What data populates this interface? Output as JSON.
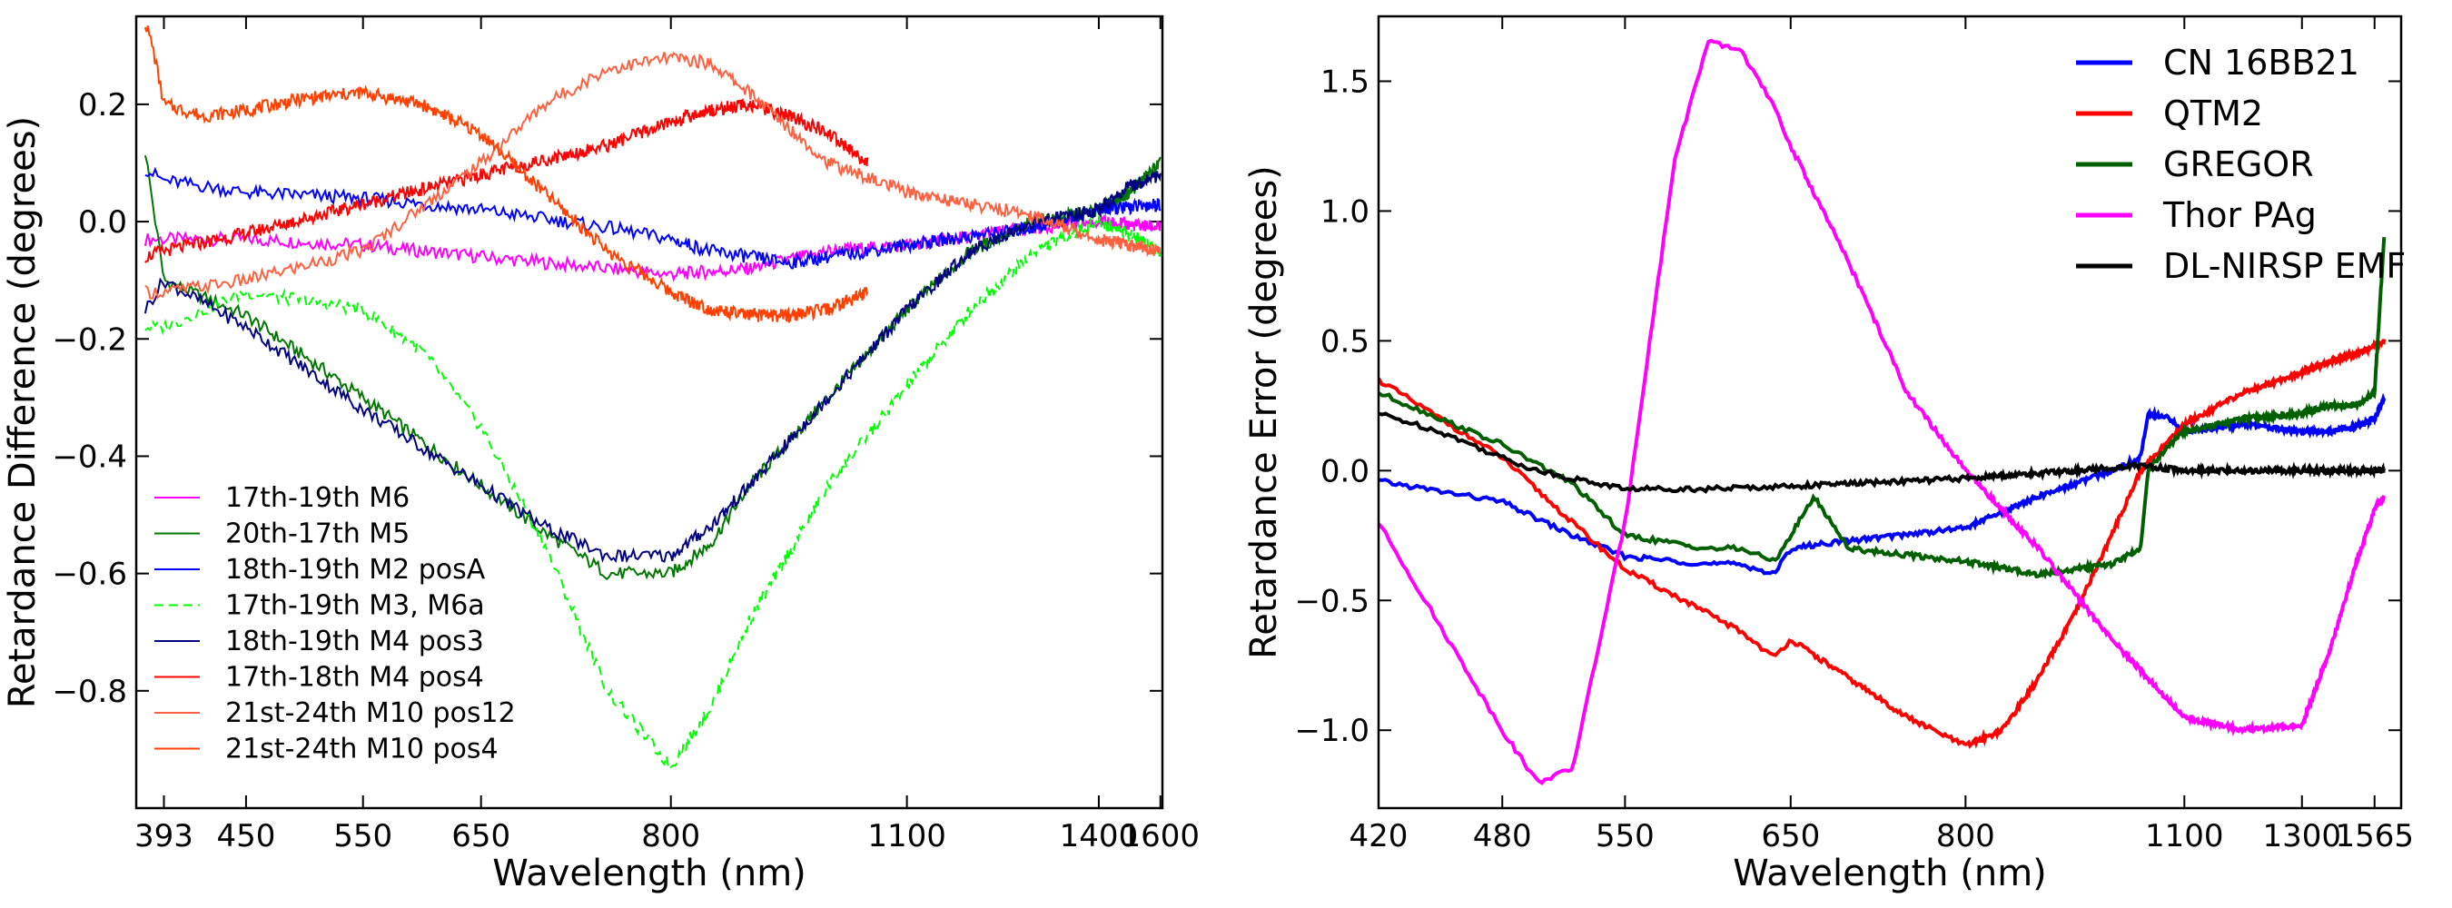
{
  "chart_data": [
    {
      "type": "line",
      "xlabel": "Wavelength (nm)",
      "ylabel": "Retardance Difference  (degrees)",
      "xticks": [
        "393",
        "450",
        "550",
        "650",
        "800",
        "1100",
        "1400",
        "1600"
      ],
      "xtick_values": [
        393,
        450,
        550,
        650,
        800,
        1100,
        1400,
        1600
      ],
      "xlim": [
        380,
        1600
      ],
      "ylim": [
        -1.0,
        0.35
      ],
      "yticks": [
        0.2,
        0.0,
        -0.2,
        -0.4,
        -0.6,
        -0.8
      ],
      "ytick_labels": [
        "0.2",
        "0.0",
        "−0.2",
        "−0.4",
        "−0.6",
        "−0.8"
      ],
      "legend_position": "lower-left",
      "series": [
        {
          "name": "17th-19th  M6",
          "color": "#ff00ff",
          "dash": "solid",
          "x": [
            380,
            450,
            550,
            650,
            750,
            800,
            900,
            1000,
            1100,
            1300,
            1400,
            1600
          ],
          "y": [
            -0.03,
            -0.03,
            -0.04,
            -0.06,
            -0.08,
            -0.09,
            -0.08,
            -0.05,
            -0.04,
            -0.01,
            0.0,
            -0.01
          ]
        },
        {
          "name": "20th-17th  M5",
          "color": "#007700",
          "dash": "solid",
          "x": [
            380,
            393,
            450,
            550,
            650,
            700,
            750,
            800,
            850,
            900,
            1000,
            1100,
            1200,
            1300,
            1400,
            1500,
            1600
          ],
          "y": [
            0.12,
            -0.1,
            -0.16,
            -0.3,
            -0.45,
            -0.53,
            -0.6,
            -0.6,
            -0.55,
            -0.45,
            -0.3,
            -0.15,
            -0.05,
            0.0,
            0.02,
            0.05,
            0.1
          ]
        },
        {
          "name": "18th-19th  M2 posA",
          "color": "#0000ff",
          "dash": "solid",
          "x": [
            380,
            393,
            450,
            550,
            650,
            750,
            850,
            950,
            1000,
            1100,
            1300,
            1400,
            1600
          ],
          "y": [
            0.09,
            0.07,
            0.05,
            0.04,
            0.02,
            -0.01,
            -0.05,
            -0.07,
            -0.06,
            -0.04,
            -0.01,
            0.02,
            0.03
          ]
        },
        {
          "name": "17th-19th  M3, M6a",
          "color": "#00ff00",
          "dash": "dashed",
          "x": [
            380,
            393,
            450,
            550,
            600,
            650,
            700,
            750,
            800,
            850,
            900,
            1000,
            1100,
            1200,
            1300,
            1400,
            1500,
            1600
          ],
          "y": [
            -0.18,
            -0.18,
            -0.12,
            -0.15,
            -0.22,
            -0.35,
            -0.55,
            -0.8,
            -0.93,
            -0.83,
            -0.68,
            -0.45,
            -0.28,
            -0.15,
            -0.05,
            0.0,
            -0.02,
            -0.05
          ]
        },
        {
          "name": "18th-19th  M4 pos3",
          "color": "#000080",
          "dash": "solid",
          "x": [
            380,
            393,
            450,
            550,
            650,
            700,
            750,
            800,
            850,
            900,
            1000,
            1100,
            1200,
            1300,
            1400,
            1500,
            1600
          ],
          "y": [
            -0.15,
            -0.1,
            -0.18,
            -0.32,
            -0.45,
            -0.52,
            -0.57,
            -0.57,
            -0.52,
            -0.45,
            -0.3,
            -0.15,
            -0.05,
            0.0,
            0.02,
            0.06,
            0.08
          ]
        },
        {
          "name": "17th-18th  M4 pos4",
          "color": "#ff0000",
          "dash": "solid",
          "x": [
            380,
            393,
            450,
            550,
            650,
            750,
            800,
            850,
            900,
            950,
            1000,
            1050
          ],
          "y": [
            -0.06,
            -0.05,
            -0.02,
            0.03,
            0.08,
            0.13,
            0.17,
            0.19,
            0.2,
            0.18,
            0.15,
            0.1
          ]
        },
        {
          "name": "21st-24th  M10 pos12",
          "color": "#ff6040",
          "dash": "solid",
          "x": [
            380,
            393,
            450,
            550,
            650,
            700,
            750,
            800,
            850,
            900,
            1000,
            1100,
            1200,
            1300,
            1400,
            1600
          ],
          "y": [
            -0.12,
            -0.12,
            -0.1,
            -0.05,
            0.1,
            0.2,
            0.26,
            0.28,
            0.27,
            0.22,
            0.1,
            0.05,
            0.03,
            0.01,
            -0.03,
            -0.05
          ]
        },
        {
          "name": "21st-24th  M10 pos4",
          "color": "#ff4000",
          "dash": "solid",
          "x": [
            380,
            385,
            393,
            420,
            450,
            500,
            550,
            600,
            650,
            700,
            750,
            800,
            850,
            900,
            950,
            1000,
            1050
          ],
          "y": [
            0.34,
            0.3,
            0.2,
            0.18,
            0.19,
            0.21,
            0.22,
            0.2,
            0.15,
            0.05,
            -0.05,
            -0.12,
            -0.15,
            -0.16,
            -0.16,
            -0.15,
            -0.12
          ]
        }
      ]
    },
    {
      "type": "line",
      "xlabel": "Wavelength (nm)",
      "ylabel": "Retardance Error  (degrees)",
      "xticks": [
        "420",
        "480",
        "550",
        "650",
        "800",
        "1100",
        "1300",
        "1565"
      ],
      "xtick_values": [
        420,
        480,
        550,
        650,
        800,
        1100,
        1300,
        1565
      ],
      "xlim": [
        420,
        1600
      ],
      "ylim": [
        -1.3,
        1.75
      ],
      "yticks": [
        1.5,
        1.0,
        0.5,
        0.0,
        -0.5,
        -1.0
      ],
      "ytick_labels": [
        "1.5",
        "1.0",
        "0.5",
        "0.0",
        "−0.5",
        "−1.0"
      ],
      "legend_position": "top-right",
      "series": [
        {
          "name": "CN 16BB21",
          "color": "#0000ff",
          "x": [
            420,
            480,
            520,
            550,
            600,
            620,
            640,
            650,
            680,
            800,
            900,
            1000,
            1040,
            1050,
            1080,
            1100,
            1200,
            1300,
            1400,
            1500,
            1565,
            1600
          ],
          "y": [
            -0.04,
            -0.12,
            -0.25,
            -0.33,
            -0.36,
            -0.36,
            -0.4,
            -0.3,
            -0.28,
            -0.22,
            -0.1,
            0.0,
            0.05,
            0.22,
            0.2,
            0.15,
            0.18,
            0.15,
            0.15,
            0.17,
            0.2,
            0.28
          ]
        },
        {
          "name": "QTM2",
          "color": "#ff0000",
          "x": [
            420,
            480,
            520,
            550,
            600,
            620,
            640,
            650,
            700,
            750,
            800,
            850,
            900,
            950,
            1000,
            1040,
            1100,
            1200,
            1300,
            1400,
            1500,
            1600
          ],
          "y": [
            0.35,
            0.05,
            -0.2,
            -0.38,
            -0.55,
            -0.62,
            -0.72,
            -0.65,
            -0.8,
            -0.95,
            -1.06,
            -1.0,
            -0.8,
            -0.55,
            -0.25,
            0.0,
            0.18,
            0.3,
            0.38,
            0.42,
            0.45,
            0.5
          ]
        },
        {
          "name": "GREGOR",
          "color": "#006000",
          "x": [
            420,
            480,
            520,
            550,
            600,
            620,
            640,
            650,
            670,
            700,
            800,
            900,
            1000,
            1040,
            1050,
            1080,
            1100,
            1200,
            1300,
            1400,
            1500,
            1565,
            1600
          ],
          "y": [
            0.3,
            0.1,
            -0.05,
            -0.25,
            -0.3,
            -0.3,
            -0.35,
            -0.25,
            -0.1,
            -0.3,
            -0.35,
            -0.4,
            -0.36,
            -0.3,
            0.0,
            0.1,
            0.15,
            0.2,
            0.22,
            0.25,
            0.25,
            0.3,
            0.9
          ]
        },
        {
          "name": "Thor PAg",
          "color": "#ff00ff",
          "x": [
            420,
            450,
            480,
            500,
            520,
            550,
            580,
            600,
            620,
            640,
            650,
            700,
            750,
            800,
            900,
            1000,
            1100,
            1200,
            1300,
            1400,
            1500,
            1565,
            1600
          ],
          "y": [
            -0.2,
            -0.6,
            -1.0,
            -1.2,
            -1.15,
            -0.2,
            1.2,
            1.65,
            1.62,
            1.4,
            1.25,
            0.8,
            0.3,
            0.0,
            -0.3,
            -0.65,
            -0.95,
            -1.0,
            -0.98,
            -0.7,
            -0.35,
            -0.15,
            -0.1
          ]
        },
        {
          "name": "DL-NIRSP EMF",
          "color": "#000000",
          "x": [
            420,
            450,
            480,
            500,
            520,
            550,
            600,
            700,
            800,
            900,
            1000,
            1040,
            1100,
            1200,
            1400,
            1600
          ],
          "y": [
            0.22,
            0.15,
            0.05,
            0.0,
            -0.03,
            -0.07,
            -0.07,
            -0.05,
            -0.03,
            -0.01,
            0.01,
            0.02,
            0.0,
            0.0,
            0.0,
            0.0
          ]
        }
      ]
    }
  ]
}
